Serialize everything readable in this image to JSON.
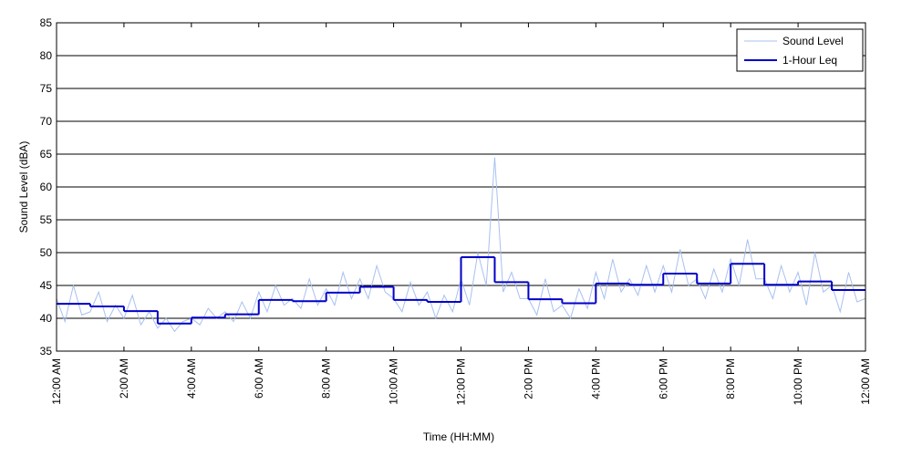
{
  "chart_data": {
    "type": "line",
    "xlabel": "Time (HH:MM)",
    "ylabel": "Sound Level (dBA)",
    "xlim": [
      0,
      24
    ],
    "ylim": [
      35,
      85
    ],
    "xticks": [
      {
        "value": 0,
        "label": "12:00 AM"
      },
      {
        "value": 2,
        "label": "2:00 AM"
      },
      {
        "value": 4,
        "label": "4:00 AM"
      },
      {
        "value": 6,
        "label": "6:00 AM"
      },
      {
        "value": 8,
        "label": "8:00 AM"
      },
      {
        "value": 10,
        "label": "10:00 AM"
      },
      {
        "value": 12,
        "label": "12:00 PM"
      },
      {
        "value": 14,
        "label": "2:00 PM"
      },
      {
        "value": 16,
        "label": "4:00 PM"
      },
      {
        "value": 18,
        "label": "6:00 PM"
      },
      {
        "value": 20,
        "label": "8:00 PM"
      },
      {
        "value": 22,
        "label": "10:00 PM"
      },
      {
        "value": 24,
        "label": "12:00 AM"
      }
    ],
    "yticks": [
      35,
      40,
      45,
      50,
      55,
      60,
      65,
      70,
      75,
      80,
      85
    ],
    "grid": true,
    "legend": "upper right",
    "series": [
      {
        "name": "Sound Level",
        "color": "#a8c0f0",
        "x": [
          0,
          0.25,
          0.5,
          0.75,
          1,
          1.25,
          1.5,
          1.75,
          2,
          2.25,
          2.5,
          2.75,
          3,
          3.25,
          3.5,
          3.75,
          4,
          4.25,
          4.5,
          4.75,
          5,
          5.25,
          5.5,
          5.75,
          6,
          6.25,
          6.5,
          6.75,
          7,
          7.25,
          7.5,
          7.75,
          8,
          8.25,
          8.5,
          8.75,
          9,
          9.25,
          9.5,
          9.75,
          10,
          10.25,
          10.5,
          10.75,
          11,
          11.25,
          11.5,
          11.75,
          12,
          12.25,
          12.5,
          12.75,
          13,
          13.25,
          13.5,
          13.75,
          14,
          14.25,
          14.5,
          14.75,
          15,
          15.25,
          15.5,
          15.75,
          16,
          16.25,
          16.5,
          16.75,
          17,
          17.25,
          17.5,
          17.75,
          18,
          18.25,
          18.5,
          18.75,
          19,
          19.25,
          19.5,
          19.75,
          20,
          20.25,
          20.5,
          20.75,
          21,
          21.25,
          21.5,
          21.75,
          22,
          22.25,
          22.5,
          22.75,
          23,
          23.25,
          23.5,
          23.75,
          24
        ],
        "values": [
          43,
          39.5,
          45,
          40.5,
          41,
          44,
          39.5,
          42,
          40,
          43.5,
          39,
          41,
          38.5,
          40,
          38,
          39.5,
          40,
          39,
          41.5,
          40,
          41,
          39.5,
          42.5,
          40,
          44,
          41,
          45,
          42,
          43,
          41.5,
          46,
          42,
          44.5,
          42,
          47,
          43,
          46,
          43,
          48,
          44,
          43,
          41,
          45.5,
          42,
          44,
          40,
          43.5,
          41,
          46,
          42,
          50,
          45,
          64.5,
          44,
          47,
          43,
          43,
          40.5,
          46,
          41,
          42,
          40,
          44.5,
          41.5,
          47,
          43,
          49,
          44,
          46,
          43.5,
          48,
          44,
          48,
          44,
          50.5,
          45,
          46,
          43,
          47.5,
          44,
          49,
          45,
          52,
          46,
          46,
          43,
          48,
          44,
          47,
          42,
          50,
          44,
          45,
          41,
          47,
          42.5,
          43
        ]
      },
      {
        "name": "1-Hour Leq",
        "color": "#0000c8",
        "step": "post",
        "x": [
          0,
          1,
          2,
          3,
          4,
          5,
          6,
          7,
          8,
          9,
          10,
          11,
          12,
          13,
          14,
          15,
          16,
          17,
          18,
          19,
          20,
          21,
          22,
          23
        ],
        "values": [
          42.2,
          41.8,
          41.1,
          39.2,
          40.1,
          40.6,
          42.8,
          42.6,
          43.9,
          44.8,
          42.8,
          42.5,
          49.3,
          45.5,
          42.9,
          42.3,
          45.3,
          45.1,
          46.8,
          45.3,
          48.3,
          45.1,
          45.6,
          44.3
        ]
      }
    ]
  }
}
